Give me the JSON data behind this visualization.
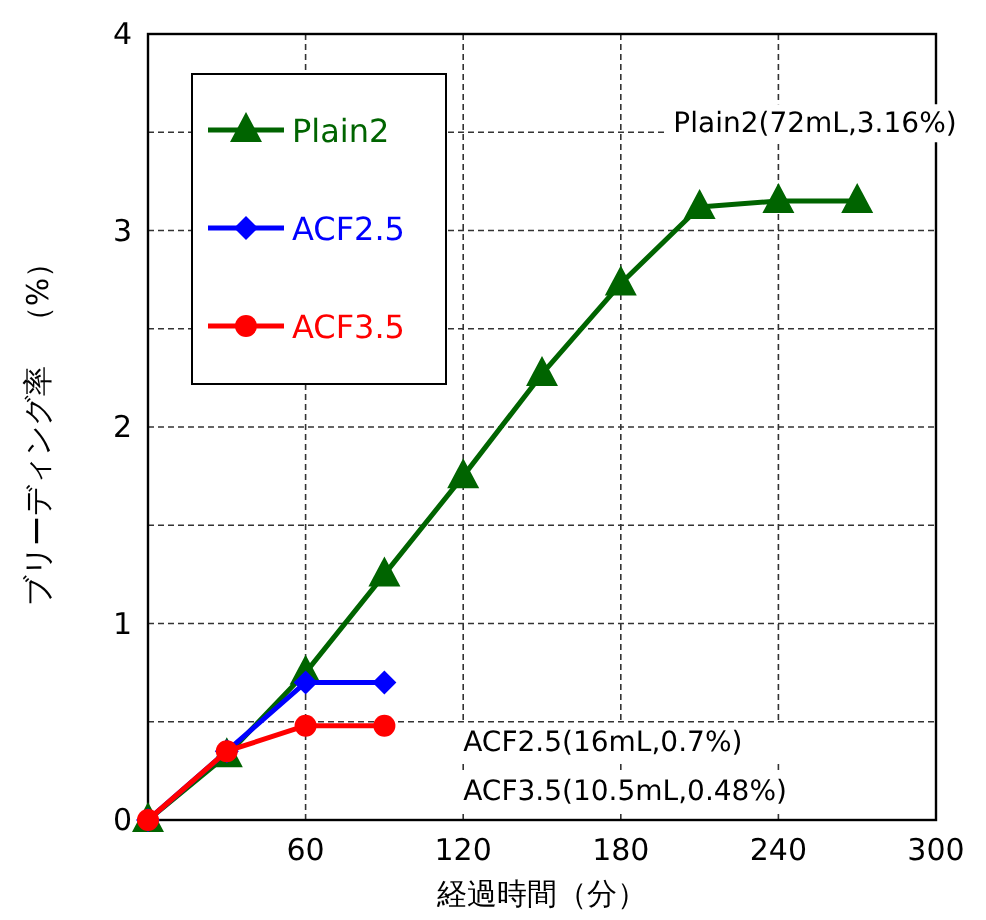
{
  "chart_data": {
    "type": "line",
    "xlabel": "経過時間（分）",
    "ylabel": "ブリーディング率　（%）",
    "xlim": [
      0,
      300
    ],
    "xticks": [
      {
        "value": 0,
        "label": null
      },
      60,
      120,
      180,
      240,
      300
    ],
    "ylim": [
      0,
      4
    ],
    "yticks": [
      0,
      {
        "value": 0.5,
        "label": null
      },
      1,
      {
        "value": 1.5,
        "label": null
      },
      2,
      {
        "value": 2.5,
        "label": null
      },
      3,
      {
        "value": 3.5,
        "label": null
      },
      4
    ],
    "grid": true,
    "legend": "top left",
    "line_style": "solid",
    "series": [
      {
        "name": "Plain2",
        "color": "#006400",
        "marker": "triangle",
        "x": [
          0,
          30,
          60,
          90,
          120,
          150,
          180,
          210,
          240,
          270
        ],
        "values": [
          0,
          0.33,
          0.75,
          1.25,
          1.75,
          2.27,
          2.73,
          3.12,
          3.15,
          3.15
        ]
      },
      {
        "name": "ACF2.5",
        "color": "#0000ff",
        "marker": "diamond",
        "x": [
          0,
          30,
          60,
          90
        ],
        "values": [
          0,
          0.35,
          0.7,
          0.7
        ]
      },
      {
        "name": "ACF3.5",
        "color": "#ff0000",
        "marker": "circle",
        "x": [
          0,
          30,
          60,
          90
        ],
        "values": [
          0,
          0.35,
          0.48,
          0.48
        ]
      }
    ],
    "annotations": [
      "Plain2(72mL,3.16%)",
      "ACF2.5(16mL,0.7%)",
      "ACF3.5(10.5mL,0.48%)"
    ]
  }
}
